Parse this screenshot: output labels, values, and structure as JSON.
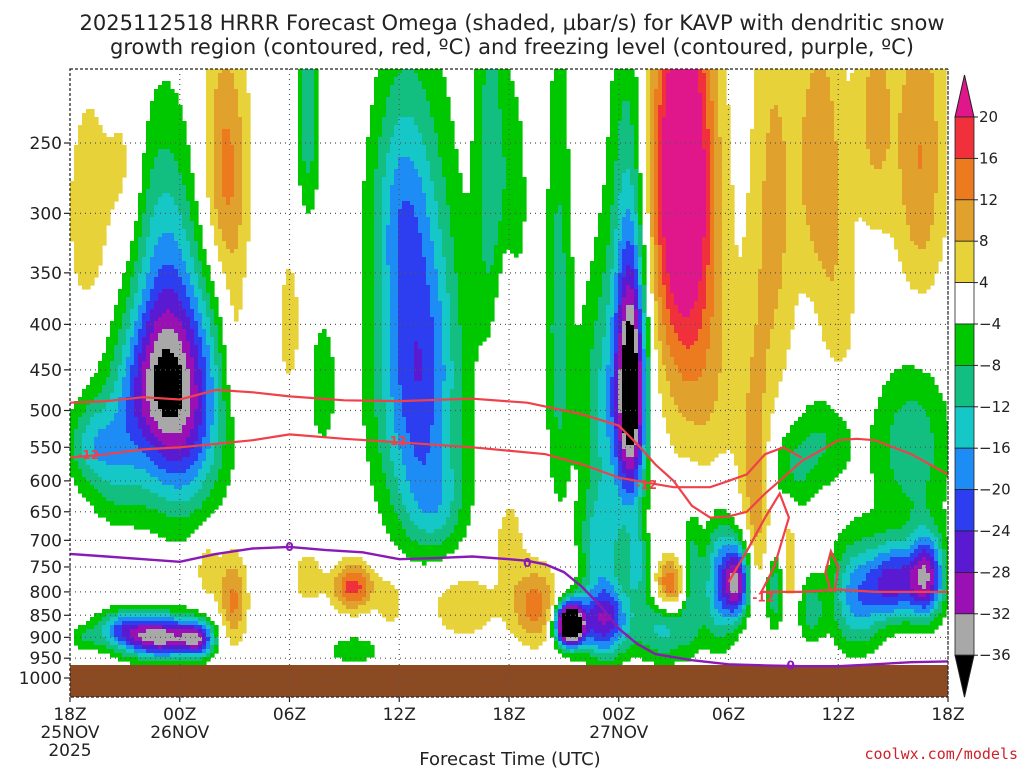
{
  "title": {
    "line1": "2025112518 HRRR Forecast Omega (shaded, µbar/s) for KAVP with dendritic snow",
    "line2": "growth region (contoured, red, ºC) and freezing level (contoured, purple, ºC)"
  },
  "credit": "coolwx.com/models",
  "colors": {
    "dgz_contour": "#f0404a",
    "freezing_contour": "#8a1ab5",
    "ground": "#8b4a22"
  },
  "chart_data": {
    "type": "heatmap",
    "title": "2025112518 HRRR Forecast Omega (shaded, µbar/s) for KAVP with dendritic snow growth region (contoured, red, ºC) and freezing level (contoured, purple, ºC)",
    "xlabel": "Forecast Time (UTC)",
    "ylabel": "",
    "x_domain_hours": [
      0,
      48
    ],
    "y_scale": "log-pressure (hPa), inverted",
    "ylim": [
      1000,
      200
    ],
    "grid": true,
    "x_ticks": [
      {
        "hour": 0,
        "l1": "18Z",
        "l2": "25NOV",
        "l3": "2025"
      },
      {
        "hour": 6,
        "l1": "00Z",
        "l2": "26NOV",
        "l3": ""
      },
      {
        "hour": 12,
        "l1": "06Z",
        "l2": "",
        "l3": ""
      },
      {
        "hour": 18,
        "l1": "12Z",
        "l2": "",
        "l3": ""
      },
      {
        "hour": 24,
        "l1": "18Z",
        "l2": "",
        "l3": ""
      },
      {
        "hour": 30,
        "l1": "00Z",
        "l2": "27NOV",
        "l3": ""
      },
      {
        "hour": 36,
        "l1": "06Z",
        "l2": "",
        "l3": ""
      },
      {
        "hour": 42,
        "l1": "12Z",
        "l2": "",
        "l3": ""
      },
      {
        "hour": 48,
        "l1": "18Z",
        "l2": "",
        "l3": ""
      }
    ],
    "y_ticks": [
      250,
      300,
      350,
      400,
      450,
      500,
      550,
      600,
      650,
      700,
      750,
      800,
      850,
      900,
      950,
      1000
    ],
    "colorbar": {
      "labels": [
        "20",
        "16",
        "12",
        "8",
        "4",
        "−4",
        "−8",
        "−12",
        "−16",
        "−20",
        "−24",
        "−28",
        "−32",
        "−36"
      ],
      "bins": [
        {
          "lo": 20,
          "hi": null,
          "color": "#e0178a"
        },
        {
          "lo": 16,
          "hi": 20,
          "color": "#f0303a"
        },
        {
          "lo": 12,
          "hi": 16,
          "color": "#ec7a1e"
        },
        {
          "lo": 8,
          "hi": 12,
          "color": "#e0a22c"
        },
        {
          "lo": 4,
          "hi": 8,
          "color": "#e8d23a"
        },
        {
          "lo": -4,
          "hi": 4,
          "color": "#ffffff"
        },
        {
          "lo": -8,
          "hi": -4,
          "color": "#00c800"
        },
        {
          "lo": -12,
          "hi": -8,
          "color": "#13bf80"
        },
        {
          "lo": -16,
          "hi": -12,
          "color": "#16c7c8"
        },
        {
          "lo": -20,
          "hi": -16,
          "color": "#1e8cf5"
        },
        {
          "lo": -24,
          "hi": -20,
          "color": "#2c3ef0"
        },
        {
          "lo": -28,
          "hi": -24,
          "color": "#5a1ad2"
        },
        {
          "lo": -32,
          "hi": -28,
          "color": "#9a10b4"
        },
        {
          "lo": -36,
          "hi": -32,
          "color": "#a8a8a8"
        },
        {
          "lo": null,
          "hi": -36,
          "color": "#000000"
        }
      ]
    },
    "omega_features": [
      {
        "t": 6.0,
        "p": 490,
        "sd_h": 1.6,
        "sd_p": 105,
        "amp": -30
      },
      {
        "t": 4.5,
        "p": 460,
        "sd_h": 1.3,
        "sd_p": 60,
        "amp": -14
      },
      {
        "t": 5.0,
        "p": 320,
        "sd_h": 1.2,
        "sd_p": 75,
        "amp": -9
      },
      {
        "t": 2.5,
        "p": 560,
        "sd_h": 1.2,
        "sd_p": 70,
        "amp": -12
      },
      {
        "t": 1.0,
        "p": 545,
        "sd_h": 0.9,
        "sd_p": 40,
        "amp": -9
      },
      {
        "t": 5.0,
        "p": 900,
        "sd_h": 1.5,
        "sd_p": 35,
        "amp": -34
      },
      {
        "t": 2.8,
        "p": 880,
        "sd_h": 1.0,
        "sd_p": 30,
        "amp": -14
      },
      {
        "t": 7.0,
        "p": 905,
        "sd_h": 0.6,
        "sd_p": 28,
        "amp": -20
      },
      {
        "t": 0.8,
        "p": 900,
        "sd_h": 0.6,
        "sd_p": 20,
        "amp": -7
      },
      {
        "t": 19.0,
        "p": 450,
        "sd_h": 1.6,
        "sd_p": 140,
        "amp": -24
      },
      {
        "t": 18.0,
        "p": 290,
        "sd_h": 1.1,
        "sd_p": 60,
        "amp": -9
      },
      {
        "t": 20.0,
        "p": 640,
        "sd_h": 1.2,
        "sd_p": 60,
        "amp": -9
      },
      {
        "t": 13.0,
        "p": 230,
        "sd_h": 0.45,
        "sd_p": 50,
        "amp": -11
      },
      {
        "t": 13.8,
        "p": 470,
        "sd_h": 0.6,
        "sd_p": 70,
        "amp": -6
      },
      {
        "t": 15.5,
        "p": 930,
        "sd_h": 1.3,
        "sd_p": 30,
        "amp": -6
      },
      {
        "t": 23.0,
        "p": 270,
        "sd_h": 0.6,
        "sd_p": 90,
        "amp": -11
      },
      {
        "t": 24.3,
        "p": 300,
        "sd_h": 0.5,
        "sd_p": 60,
        "amp": -8
      },
      {
        "t": 29.5,
        "p": 500,
        "sd_h": 1.1,
        "sd_p": 120,
        "amp": -14
      },
      {
        "t": 30.7,
        "p": 480,
        "sd_h": 0.55,
        "sd_p": 100,
        "amp": -36
      },
      {
        "t": 30.5,
        "p": 300,
        "sd_h": 0.7,
        "sd_p": 120,
        "amp": -9
      },
      {
        "t": 26.7,
        "p": 400,
        "sd_h": 0.5,
        "sd_p": 160,
        "amp": -10
      },
      {
        "t": 29.0,
        "p": 700,
        "sd_h": 0.8,
        "sd_p": 60,
        "amp": -12
      },
      {
        "t": 29.2,
        "p": 860,
        "sd_h": 0.9,
        "sd_p": 60,
        "amp": -28
      },
      {
        "t": 27.3,
        "p": 870,
        "sd_h": 0.55,
        "sd_p": 35,
        "amp": -55
      },
      {
        "t": 31.0,
        "p": 740,
        "sd_h": 0.4,
        "sd_p": 50,
        "amp": -12
      },
      {
        "t": 34.0,
        "p": 760,
        "sd_h": 0.4,
        "sd_p": 90,
        "amp": -10
      },
      {
        "t": 35.5,
        "p": 780,
        "sd_h": 0.6,
        "sd_p": 90,
        "amp": -18
      },
      {
        "t": 36.5,
        "p": 780,
        "sd_h": 0.5,
        "sd_p": 55,
        "amp": -30
      },
      {
        "t": 38.5,
        "p": 800,
        "sd_h": 0.4,
        "sd_p": 60,
        "amp": -12
      },
      {
        "t": 40.5,
        "p": 840,
        "sd_h": 0.5,
        "sd_p": 50,
        "amp": -10
      },
      {
        "t": 43.0,
        "p": 810,
        "sd_h": 1.0,
        "sd_p": 80,
        "amp": -18
      },
      {
        "t": 45.0,
        "p": 780,
        "sd_h": 0.9,
        "sd_p": 55,
        "amp": -24
      },
      {
        "t": 46.8,
        "p": 770,
        "sd_h": 0.7,
        "sd_p": 60,
        "amp": -30
      },
      {
        "t": 46.0,
        "p": 550,
        "sd_h": 1.5,
        "sd_p": 80,
        "amp": -11
      },
      {
        "t": 41.5,
        "p": 530,
        "sd_h": 1.0,
        "sd_p": 50,
        "amp": -8
      },
      {
        "t": 39.5,
        "p": 580,
        "sd_h": 1.0,
        "sd_p": 50,
        "amp": -9
      },
      {
        "t": 32.5,
        "p": 870,
        "sd_h": 1.2,
        "sd_p": 60,
        "amp": -14
      },
      {
        "t": 8.5,
        "p": 270,
        "sd_h": 0.9,
        "sd_p": 65,
        "amp": 14
      },
      {
        "t": 9.0,
        "p": 420,
        "sd_h": 0.5,
        "sd_p": 60,
        "amp": 6
      },
      {
        "t": 8.9,
        "p": 820,
        "sd_h": 0.55,
        "sd_p": 70,
        "amp": 13
      },
      {
        "t": 7.5,
        "p": 750,
        "sd_h": 0.5,
        "sd_p": 45,
        "amp": 7
      },
      {
        "t": 1.0,
        "p": 300,
        "sd_h": 0.8,
        "sd_p": 60,
        "amp": 8
      },
      {
        "t": 3.0,
        "p": 270,
        "sd_h": 0.7,
        "sd_p": 45,
        "amp": 6
      },
      {
        "t": 12.0,
        "p": 400,
        "sd_h": 0.5,
        "sd_p": 60,
        "amp": 6
      },
      {
        "t": 15.5,
        "p": 790,
        "sd_h": 0.8,
        "sd_p": 35,
        "amp": 18
      },
      {
        "t": 13.0,
        "p": 770,
        "sd_h": 0.6,
        "sd_p": 40,
        "amp": 7
      },
      {
        "t": 17.5,
        "p": 820,
        "sd_h": 0.5,
        "sd_p": 40,
        "amp": 7
      },
      {
        "t": 21.5,
        "p": 830,
        "sd_h": 1.3,
        "sd_p": 50,
        "amp": 8
      },
      {
        "t": 25.5,
        "p": 830,
        "sd_h": 1.0,
        "sd_p": 60,
        "amp": 14
      },
      {
        "t": 24.0,
        "p": 700,
        "sd_h": 0.6,
        "sd_p": 60,
        "amp": 6
      },
      {
        "t": 24.0,
        "p": 380,
        "sd_h": 0.5,
        "sd_p": 60,
        "amp": 6
      },
      {
        "t": 33.5,
        "p": 255,
        "sd_h": 1.2,
        "sd_p": 90,
        "amp": 24
      },
      {
        "t": 33.5,
        "p": 360,
        "sd_h": 1.3,
        "sd_p": 110,
        "amp": 10
      },
      {
        "t": 35.0,
        "p": 480,
        "sd_h": 1.5,
        "sd_p": 110,
        "amp": 6
      },
      {
        "t": 32.8,
        "p": 790,
        "sd_h": 0.6,
        "sd_p": 40,
        "amp": 20
      },
      {
        "t": 37.5,
        "p": 630,
        "sd_h": 0.6,
        "sd_p": 150,
        "amp": 10
      },
      {
        "t": 38.5,
        "p": 300,
        "sd_h": 0.9,
        "sd_p": 130,
        "amp": 9
      },
      {
        "t": 41.0,
        "p": 260,
        "sd_h": 0.9,
        "sd_p": 70,
        "amp": 11
      },
      {
        "t": 44.0,
        "p": 230,
        "sd_h": 0.8,
        "sd_p": 60,
        "amp": 9
      },
      {
        "t": 46.5,
        "p": 260,
        "sd_h": 1.0,
        "sd_p": 80,
        "amp": 12
      },
      {
        "t": 42.0,
        "p": 400,
        "sd_h": 0.8,
        "sd_p": 80,
        "amp": 6
      },
      {
        "t": 39.3,
        "p": 750,
        "sd_h": 0.3,
        "sd_p": 80,
        "amp": 8
      }
    ],
    "dgz_minus12_contours": [
      {
        "points": [
          [
            0,
            490
          ],
          [
            2,
            488
          ],
          [
            4,
            483
          ],
          [
            6,
            486
          ],
          [
            8,
            474
          ],
          [
            10,
            477
          ],
          [
            12,
            482
          ],
          [
            15,
            487
          ],
          [
            18,
            488
          ],
          [
            22,
            485
          ],
          [
            25,
            490
          ],
          [
            28,
            505
          ],
          [
            30,
            520
          ],
          [
            31,
            545
          ],
          [
            32,
            575
          ],
          [
            33,
            600
          ],
          [
            34,
            640
          ],
          [
            35,
            660
          ],
          [
            36,
            658
          ],
          [
            37,
            650
          ],
          [
            38,
            620
          ],
          [
            39,
            595
          ],
          [
            40,
            570
          ],
          [
            41,
            555
          ],
          [
            42,
            540
          ],
          [
            43,
            538
          ],
          [
            44,
            540
          ],
          [
            46,
            560
          ],
          [
            47,
            575
          ],
          [
            48,
            590
          ]
        ]
      },
      {
        "points": [
          [
            0,
            565
          ],
          [
            2,
            560
          ],
          [
            4,
            553
          ],
          [
            6,
            550
          ],
          [
            8,
            545
          ],
          [
            10,
            540
          ],
          [
            12,
            532
          ],
          [
            15,
            538
          ],
          [
            18,
            543
          ],
          [
            22,
            550
          ],
          [
            26,
            560
          ],
          [
            28,
            575
          ],
          [
            30,
            595
          ],
          [
            31,
            600
          ],
          [
            33,
            610
          ],
          [
            35,
            610
          ],
          [
            36,
            600
          ],
          [
            37,
            590
          ],
          [
            38,
            560
          ],
          [
            39,
            550
          ],
          [
            40,
            565
          ]
        ]
      },
      {
        "points": [
          [
            36,
            780
          ],
          [
            37,
            720
          ],
          [
            38,
            660
          ],
          [
            38.8,
            620
          ],
          [
            39.3,
            660
          ],
          [
            38.5,
            750
          ],
          [
            37.8,
            800
          ],
          [
            40,
            800
          ],
          [
            42,
            795
          ],
          [
            44,
            800
          ],
          [
            46,
            800
          ],
          [
            48,
            800
          ]
        ]
      },
      {
        "points": [
          [
            41.6,
            800
          ],
          [
            41.3,
            760
          ],
          [
            41.6,
            720
          ],
          [
            42,
            750
          ],
          [
            41.8,
            800
          ]
        ]
      }
    ],
    "dgz_labels": [
      {
        "t": 1.0,
        "p": 560,
        "text": "-12"
      },
      {
        "t": 17.8,
        "p": 540,
        "text": "-12"
      },
      {
        "t": 31.5,
        "p": 605,
        "text": "-12"
      },
      {
        "t": 37.9,
        "p": 810,
        "text": "-12"
      }
    ],
    "freezing_0_contour": [
      [
        0,
        725
      ],
      [
        2,
        730
      ],
      [
        4,
        735
      ],
      [
        6,
        740
      ],
      [
        8,
        725
      ],
      [
        10,
        715
      ],
      [
        12,
        712
      ],
      [
        14,
        718
      ],
      [
        16,
        722
      ],
      [
        18,
        735
      ],
      [
        20,
        733
      ],
      [
        22,
        730
      ],
      [
        24,
        735
      ],
      [
        25,
        738
      ],
      [
        26,
        745
      ],
      [
        27,
        760
      ],
      [
        28,
        790
      ],
      [
        29,
        830
      ],
      [
        30,
        880
      ],
      [
        31,
        915
      ],
      [
        32,
        940
      ],
      [
        34,
        955
      ],
      [
        36,
        965
      ],
      [
        38,
        968
      ],
      [
        40,
        970
      ],
      [
        42,
        970
      ],
      [
        44,
        965
      ],
      [
        46,
        960
      ],
      [
        48,
        958
      ]
    ],
    "freezing_labels": [
      {
        "t": 12.0,
        "p": 710,
        "text": "0"
      },
      {
        "t": 25.0,
        "p": 740,
        "text": "0"
      },
      {
        "t": 39.4,
        "p": 965,
        "text": "0"
      }
    ]
  }
}
